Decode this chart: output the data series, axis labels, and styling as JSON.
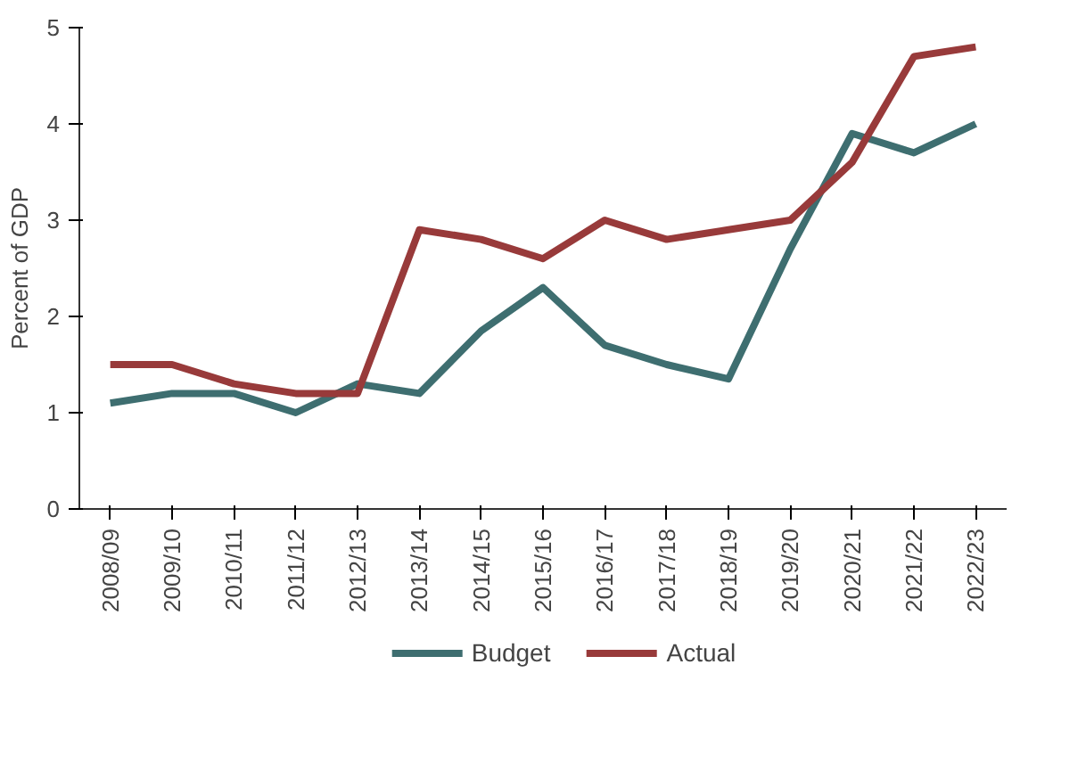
{
  "chart_data": {
    "type": "line",
    "ylabel": "Percent of GDP",
    "categories": [
      "2008/09",
      "2009/10",
      "2010/11",
      "2011/12",
      "2012/13",
      "2013/14",
      "2014/15",
      "2015/16",
      "2016/17",
      "2017/18",
      "2018/19",
      "2019/20",
      "2020/21",
      "2021/22",
      "2022/23"
    ],
    "series": [
      {
        "name": "Budget",
        "color": "#3e6e70",
        "values": [
          1.1,
          1.2,
          1.2,
          1.0,
          1.3,
          1.2,
          1.85,
          2.3,
          1.7,
          1.5,
          1.35,
          2.7,
          3.9,
          3.7,
          4.0
        ]
      },
      {
        "name": "Actual",
        "color": "#983a3a",
        "values": [
          1.5,
          1.5,
          1.3,
          1.2,
          1.2,
          2.9,
          2.8,
          2.6,
          3.0,
          2.8,
          2.9,
          3.0,
          3.6,
          4.7,
          4.8
        ]
      }
    ],
    "ylim": [
      0,
      5
    ],
    "yticks": [
      0,
      1,
      2,
      3,
      4,
      5
    ],
    "grid": false,
    "legend": "bottom",
    "marker": "none",
    "line_style": "solid"
  }
}
